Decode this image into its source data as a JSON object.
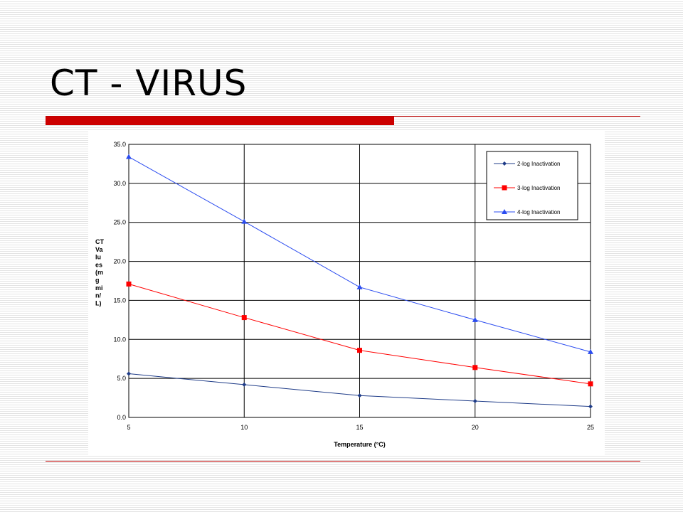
{
  "slide": {
    "title": "CT - VIRUS"
  },
  "chart_data": {
    "type": "line",
    "title": "",
    "xlabel": "Temperature (°C)",
    "ylabel": "CT Values (mgmin/L)",
    "ylabel_lines": [
      "CT",
      "Va",
      "lu",
      "es",
      "(m",
      "g",
      "mi",
      "n/",
      "L)"
    ],
    "x": [
      5,
      10,
      15,
      20,
      25
    ],
    "xlim": [
      5,
      25
    ],
    "ylim": [
      0,
      35
    ],
    "yticks": [
      "0.0",
      "5.0",
      "10.0",
      "15.0",
      "20.0",
      "25.0",
      "30.0",
      "35.0"
    ],
    "xticks": [
      "5",
      "10",
      "15",
      "20",
      "25"
    ],
    "grid": true,
    "legend_position": "top-right",
    "series": [
      {
        "name": "2-log Inactivation",
        "values": [
          5.6,
          4.2,
          2.8,
          2.1,
          1.4
        ],
        "color": "#1f3c88",
        "marker": "diamond"
      },
      {
        "name": "3-log Inactivation",
        "values": [
          17.1,
          12.8,
          8.6,
          6.4,
          4.3
        ],
        "color": "#ff0000",
        "marker": "square"
      },
      {
        "name": "4-log Inactivation",
        "values": [
          33.4,
          25.1,
          16.7,
          12.5,
          8.4
        ],
        "color": "#2b4cf0",
        "marker": "triangle"
      }
    ]
  }
}
